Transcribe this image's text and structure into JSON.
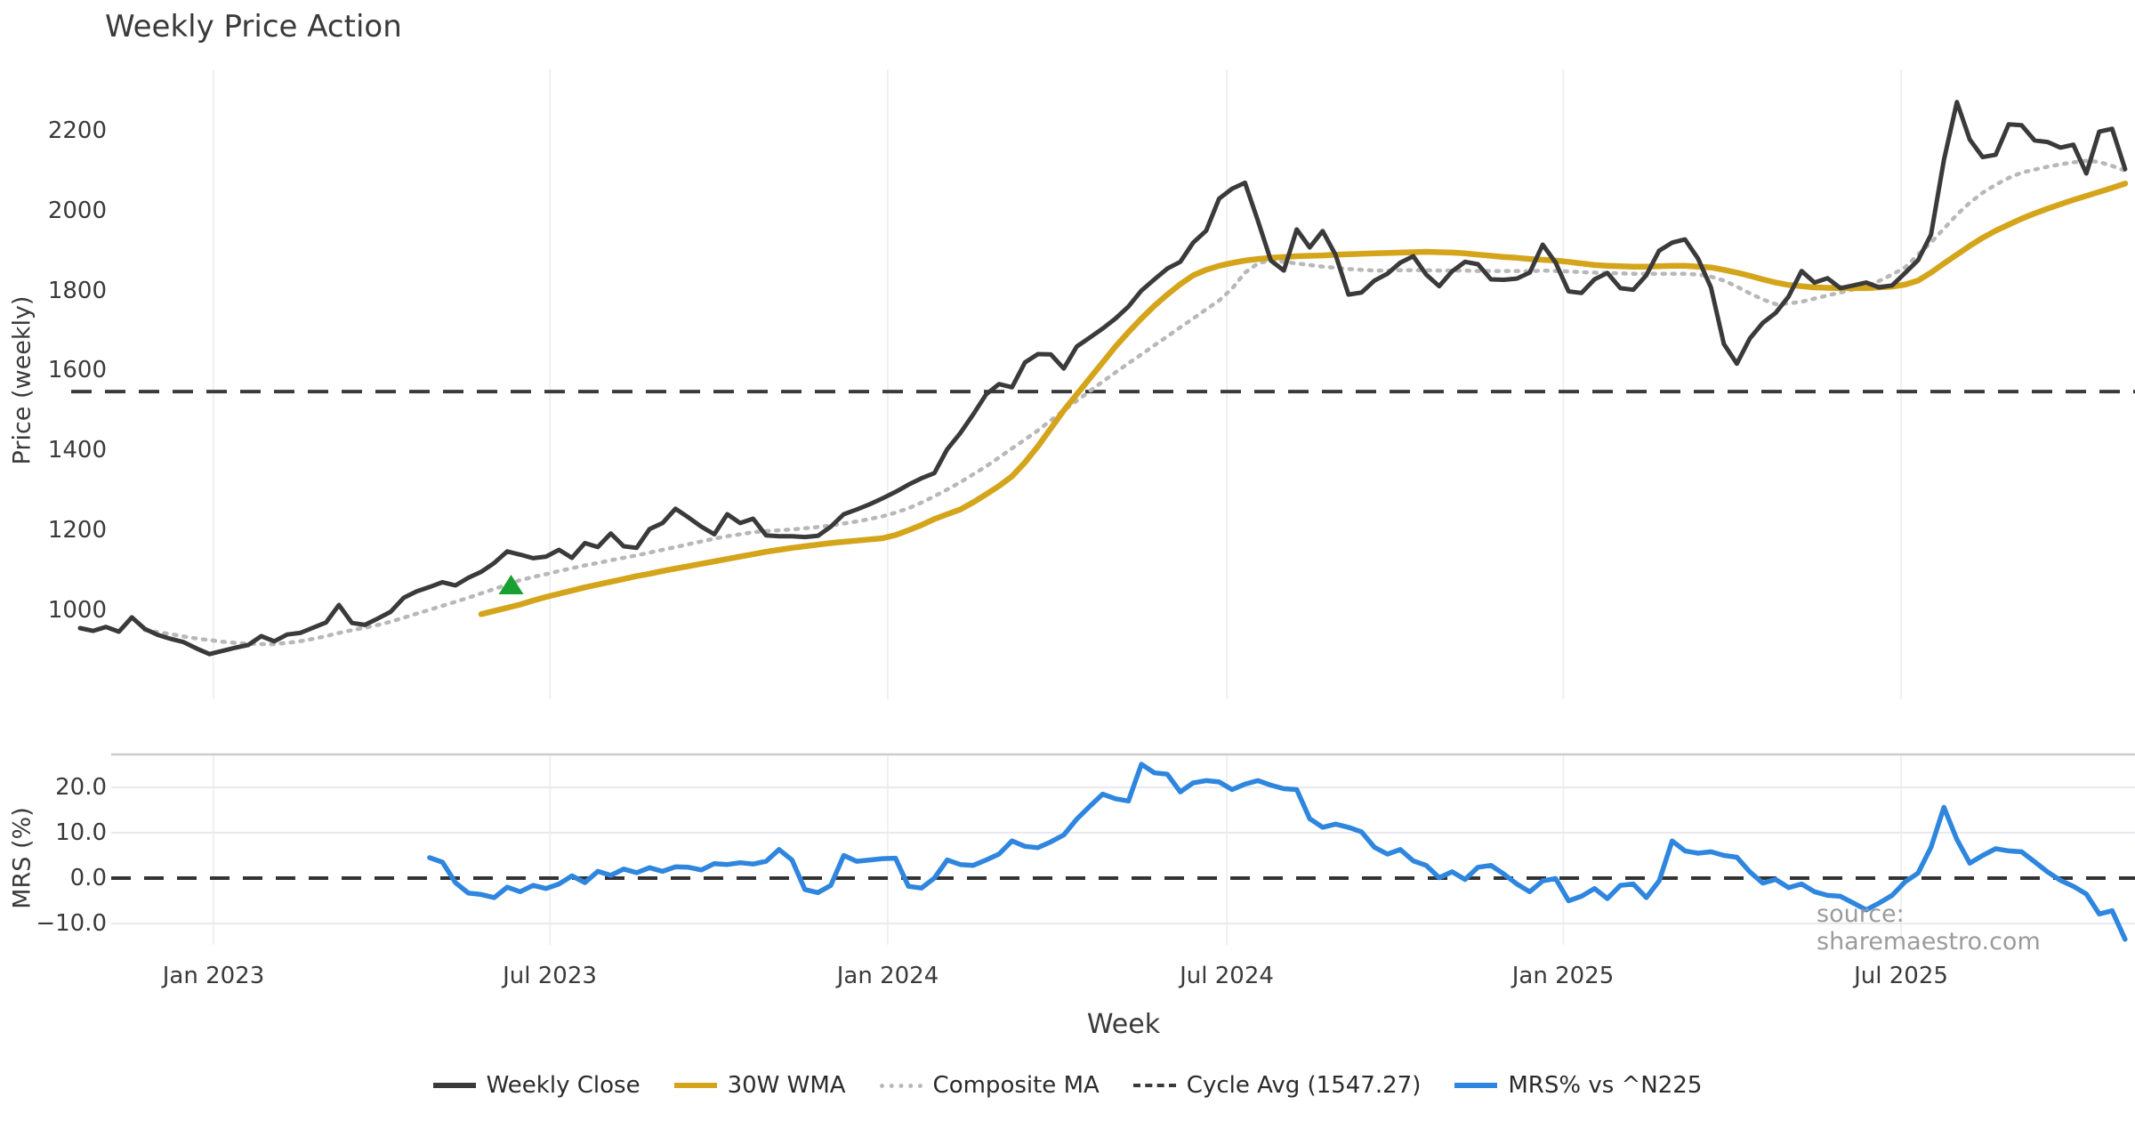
{
  "title": "Weekly Price Action",
  "source": "source: sharemaestro.com",
  "price_panel": {
    "ylabel": "Price (weekly)",
    "yticks": [
      "2200",
      "2000",
      "1800",
      "1600",
      "1400",
      "1200",
      "1000"
    ]
  },
  "mrs_panel": {
    "ylabel": "MRS (%)",
    "yticks": [
      "20.0",
      "10.0",
      "0.0",
      "−10.0"
    ]
  },
  "xlabel": "Week",
  "x_ticks": [
    "Jan 2023",
    "Jul 2023",
    "Jan 2024",
    "Jul 2024",
    "Jan 2025",
    "Jul 2025"
  ],
  "legend": [
    {
      "label": "Weekly Close",
      "style": "solid",
      "color": "#3a3a3a"
    },
    {
      "label": "30W WMA",
      "style": "solid",
      "color": "#d4a41b"
    },
    {
      "label": "Composite MA",
      "style": "dotted",
      "color": "#b8b8b8"
    },
    {
      "label": "Cycle Avg (1547.27)",
      "style": "dashed",
      "color": "#3a3a3a"
    },
    {
      "label": "MRS% vs ^N225",
      "style": "solid",
      "color": "#2e86de"
    }
  ],
  "colors": {
    "weekly_close": "#3a3a3a",
    "wma_30w": "#d4a41b",
    "composite_ma": "#b8b8b8",
    "cycle_avg": "#3a3a3a",
    "mrs": "#2e86de",
    "buy_marker": "#18a030",
    "vgrid": "#f0f0f0",
    "hgrid_mrs": "#e9e9f1",
    "panel_border": "#cccccc",
    "zero_dash": "#333333"
  },
  "chart_data": {
    "type": "line",
    "x_unit": "week_index",
    "weeks": 159,
    "x_gridline_labels": [
      "Jan 2023",
      "Jul 2023",
      "Jan 2024",
      "Jul 2024",
      "Jan 2025",
      "Jul 2025"
    ],
    "x_gridline_week_index": [
      10.3,
      36.3,
      62.4,
      88.6,
      114.6,
      140.7
    ],
    "price": {
      "ylabel": "Price (weekly)",
      "ylim": [
        860,
        2330
      ],
      "cycle_avg": 1547.27,
      "buy_marker": {
        "week": 33.3,
        "price": 1062
      },
      "weekly_close": [
        955,
        948,
        958,
        946,
        982,
        953,
        938,
        928,
        920,
        904,
        890,
        898,
        906,
        913,
        935,
        922,
        939,
        943,
        956,
        969,
        1013,
        968,
        963,
        979,
        996,
        1031,
        1047,
        1058,
        1070,
        1062,
        1081,
        1096,
        1118,
        1147,
        1139,
        1130,
        1134,
        1151,
        1131,
        1168,
        1158,
        1192,
        1160,
        1156,
        1203,
        1218,
        1254,
        1232,
        1209,
        1190,
        1240,
        1218,
        1229,
        1187,
        1185,
        1185,
        1183,
        1186,
        1209,
        1240,
        1252,
        1265,
        1280,
        1296,
        1314,
        1330,
        1343,
        1403,
        1443,
        1490,
        1540,
        1566,
        1558,
        1620,
        1641,
        1640,
        1605,
        1660,
        1682,
        1705,
        1730,
        1760,
        1800,
        1828,
        1855,
        1872,
        1920,
        1950,
        2030,
        2055,
        2070,
        1975,
        1875,
        1850,
        1953,
        1908,
        1949,
        1889,
        1790,
        1795,
        1825,
        1842,
        1870,
        1886,
        1840,
        1811,
        1848,
        1872,
        1866,
        1828,
        1827,
        1830,
        1845,
        1915,
        1870,
        1798,
        1794,
        1828,
        1844,
        1806,
        1802,
        1838,
        1900,
        1920,
        1928,
        1880,
        1808,
        1666,
        1617,
        1680,
        1719,
        1744,
        1785,
        1849,
        1820,
        1831,
        1806,
        1813,
        1820,
        1808,
        1813,
        1844,
        1876,
        1940,
        2127,
        2272,
        2178,
        2134,
        2140,
        2216,
        2214,
        2176,
        2172,
        2158,
        2165,
        2093,
        2198,
        2205,
        2104
      ],
      "wma_30w": [
        null,
        null,
        null,
        null,
        null,
        null,
        null,
        null,
        null,
        null,
        null,
        null,
        null,
        null,
        null,
        null,
        null,
        null,
        null,
        null,
        null,
        null,
        null,
        null,
        null,
        null,
        null,
        null,
        null,
        null,
        null,
        990,
        998,
        1006,
        1014,
        1024,
        1033,
        1041,
        1049,
        1057,
        1064,
        1071,
        1078,
        1085,
        1091,
        1098,
        1104,
        1110,
        1116,
        1122,
        1128,
        1134,
        1140,
        1146,
        1151,
        1156,
        1160,
        1164,
        1168,
        1171,
        1174,
        1177,
        1180,
        1188,
        1200,
        1213,
        1228,
        1240,
        1252,
        1270,
        1290,
        1311,
        1335,
        1370,
        1410,
        1455,
        1500,
        1540,
        1580,
        1620,
        1660,
        1696,
        1730,
        1762,
        1790,
        1816,
        1838,
        1852,
        1862,
        1869,
        1875,
        1879,
        1882,
        1884,
        1886,
        1887,
        1888,
        1890,
        1891,
        1892,
        1893,
        1894,
        1895,
        1896,
        1897,
        1896,
        1895,
        1893,
        1890,
        1887,
        1884,
        1882,
        1879,
        1877,
        1875,
        1872,
        1868,
        1864,
        1862,
        1861,
        1860,
        1860,
        1861,
        1862,
        1862,
        1860,
        1858,
        1852,
        1845,
        1837,
        1828,
        1820,
        1814,
        1811,
        1808,
        1807,
        1806,
        1806,
        1806,
        1808,
        1810,
        1815,
        1825,
        1845,
        1868,
        1890,
        1912,
        1932,
        1950,
        1965,
        1980,
        1993,
        2005,
        2016,
        2027,
        2037,
        2047,
        2057,
        2068
      ],
      "composite_ma": [
        null,
        null,
        null,
        null,
        null,
        950,
        945,
        940,
        934,
        929,
        925,
        921,
        918,
        916,
        915,
        915,
        918,
        922,
        928,
        935,
        943,
        950,
        956,
        963,
        971,
        981,
        991,
        1001,
        1011,
        1021,
        1031,
        1042,
        1053,
        1064,
        1075,
        1083,
        1090,
        1098,
        1105,
        1112,
        1118,
        1125,
        1131,
        1137,
        1144,
        1151,
        1158,
        1165,
        1172,
        1179,
        1185,
        1190,
        1195,
        1198,
        1200,
        1202,
        1205,
        1208,
        1212,
        1217,
        1222,
        1228,
        1235,
        1244,
        1255,
        1269,
        1285,
        1302,
        1320,
        1340,
        1360,
        1382,
        1405,
        1427,
        1450,
        1475,
        1500,
        1524,
        1548,
        1572,
        1595,
        1618,
        1640,
        1663,
        1685,
        1708,
        1730,
        1753,
        1775,
        1805,
        1845,
        1868,
        1876,
        1872,
        1868,
        1864,
        1860,
        1857,
        1854,
        1852,
        1850,
        1850,
        1851,
        1851,
        1851,
        1850,
        1850,
        1850,
        1849,
        1849,
        1849,
        1849,
        1848,
        1850,
        1849,
        1848,
        1846,
        1845,
        1844,
        1843,
        1842,
        1842,
        1842,
        1842,
        1842,
        1840,
        1835,
        1825,
        1810,
        1793,
        1778,
        1766,
        1768,
        1772,
        1780,
        1788,
        1795,
        1803,
        1812,
        1824,
        1840,
        1858,
        1890,
        1920,
        1955,
        1990,
        2020,
        2045,
        2065,
        2082,
        2095,
        2103,
        2110,
        2116,
        2121,
        2125,
        2122,
        2112,
        2100
      ]
    },
    "mrs": {
      "ylabel": "MRS (%)",
      "ylim": [
        -14.7,
        27.3
      ],
      "zero_line": 0,
      "values": [
        null,
        null,
        null,
        null,
        null,
        null,
        null,
        null,
        null,
        null,
        null,
        null,
        null,
        null,
        null,
        null,
        null,
        null,
        null,
        null,
        null,
        null,
        null,
        null,
        null,
        null,
        null,
        4.5,
        3.5,
        -1.0,
        -3.3,
        -3.6,
        -4.3,
        -2.0,
        -3.0,
        -1.6,
        -2.3,
        -1.3,
        0.5,
        -1.0,
        1.5,
        0.6,
        2.0,
        1.2,
        2.3,
        1.5,
        2.5,
        2.4,
        1.8,
        3.2,
        3.0,
        3.4,
        3.1,
        3.7,
        6.3,
        4.0,
        -2.5,
        -3.2,
        -1.6,
        5.0,
        3.7,
        4.0,
        4.3,
        4.4,
        -1.8,
        -2.2,
        0.0,
        4.0,
        3.0,
        2.8,
        4.0,
        5.3,
        8.2,
        7.0,
        6.7,
        8.0,
        9.5,
        13.0,
        15.8,
        18.5,
        17.5,
        17.0,
        25.1,
        23.2,
        22.9,
        19.0,
        21.0,
        21.5,
        21.2,
        19.5,
        20.7,
        21.5,
        20.5,
        19.7,
        19.5,
        13.1,
        11.2,
        11.9,
        11.2,
        10.2,
        6.8,
        5.3,
        6.3,
        3.8,
        2.8,
        0.1,
        1.4,
        -0.3,
        2.4,
        2.8,
        0.9,
        -1.3,
        -3.0,
        -0.6,
        -0.1,
        -5.0,
        -4.0,
        -2.3,
        -4.5,
        -1.6,
        -1.3,
        -4.3,
        -0.6,
        8.2,
        6.0,
        5.5,
        5.8,
        5.0,
        4.6,
        1.4,
        -1.1,
        -0.3,
        -2.1,
        -1.3,
        -3.0,
        -3.8,
        -4.0,
        -5.5,
        -7.0,
        -5.5,
        -3.8,
        -0.8,
        1.1,
        6.8,
        15.6,
        8.5,
        3.3,
        5.0,
        6.5,
        6.0,
        5.8,
        3.6,
        1.4,
        -0.5,
        -1.8,
        -3.5,
        -7.9,
        -7.2,
        -13.5
      ]
    }
  }
}
